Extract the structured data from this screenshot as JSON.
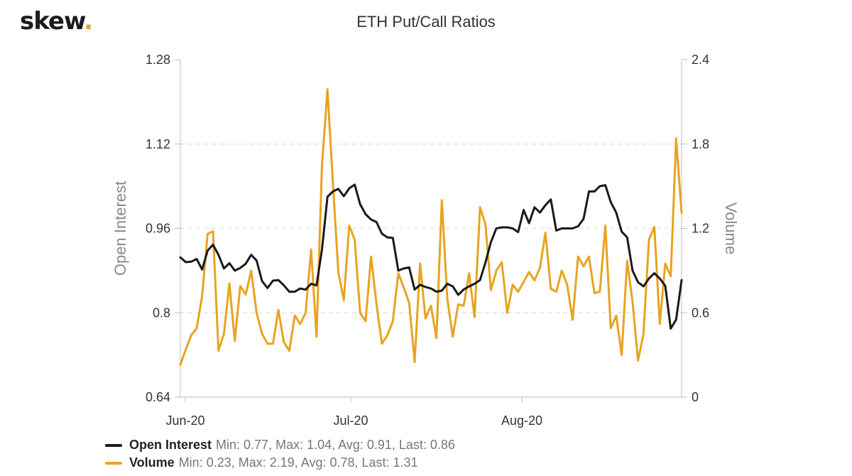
{
  "brand": {
    "name": "skew",
    "dot": "."
  },
  "chart_data": {
    "type": "line",
    "title": "ETH Put/Call Ratios",
    "x_ticks": [
      "Jun-20",
      "Jul-20",
      "Aug-20"
    ],
    "x_range": [
      "2020-05-31",
      "2020-09-02"
    ],
    "y_left": {
      "label": "Open Interest",
      "range": [
        0.64,
        1.28
      ],
      "ticks": [
        "1.28",
        "1.12",
        "0.96",
        "0.8",
        "0.64"
      ]
    },
    "y_right": {
      "label": "Volume",
      "range": [
        0,
        2.4
      ],
      "ticks": [
        "2.4",
        "1.8",
        "1.2",
        "0.6",
        "0"
      ]
    },
    "grid": true,
    "legend_position": "bottom-left",
    "series": [
      {
        "name": "Open Interest",
        "axis": "left",
        "color": "#1a1a1a",
        "values": [
          0.905,
          0.896,
          0.897,
          0.902,
          0.882,
          0.918,
          0.929,
          0.91,
          0.884,
          0.894,
          0.88,
          0.885,
          0.893,
          0.91,
          0.899,
          0.86,
          0.847,
          0.861,
          0.862,
          0.852,
          0.84,
          0.84,
          0.846,
          0.844,
          0.855,
          0.852,
          0.92,
          1.02,
          1.03,
          1.035,
          1.021,
          1.036,
          1.043,
          1.006,
          0.987,
          0.977,
          0.972,
          0.95,
          0.943,
          0.942,
          0.88,
          0.884,
          0.886,
          0.844,
          0.853,
          0.849,
          0.846,
          0.84,
          0.842,
          0.855,
          0.85,
          0.834,
          0.844,
          0.85,
          0.855,
          0.862,
          0.895,
          0.934,
          0.96,
          0.962,
          0.962,
          0.96,
          0.953,
          0.995,
          0.97,
          1.0,
          0.99,
          1.004,
          1.015,
          0.956,
          0.96,
          0.96,
          0.96,
          0.964,
          0.978,
          1.03,
          1.03,
          1.04,
          1.042,
          1.01,
          0.99,
          0.954,
          0.943,
          0.88,
          0.858,
          0.85,
          0.865,
          0.875,
          0.865,
          0.851,
          0.77,
          0.787,
          0.862
        ]
      },
      {
        "name": "Volume",
        "axis": "right",
        "color": "#e8a320",
        "values": [
          0.23,
          0.34,
          0.44,
          0.49,
          0.72,
          1.16,
          1.18,
          0.33,
          0.45,
          0.81,
          0.4,
          0.79,
          0.73,
          0.9,
          0.6,
          0.45,
          0.38,
          0.38,
          0.62,
          0.39,
          0.33,
          0.58,
          0.52,
          0.6,
          1.05,
          0.43,
          1.65,
          2.19,
          1.52,
          0.89,
          0.69,
          1.22,
          1.12,
          0.6,
          0.54,
          1.0,
          0.66,
          0.38,
          0.44,
          0.54,
          0.88,
          0.78,
          0.67,
          0.25,
          0.95,
          0.56,
          0.65,
          0.42,
          1.4,
          0.7,
          0.43,
          0.66,
          0.65,
          0.88,
          0.57,
          1.35,
          1.23,
          0.76,
          0.9,
          0.96,
          0.6,
          0.8,
          0.75,
          0.82,
          0.89,
          0.83,
          0.92,
          1.17,
          0.77,
          0.75,
          0.9,
          0.8,
          0.55,
          1.0,
          0.93,
          1.0,
          0.74,
          0.75,
          1.22,
          0.49,
          0.58,
          0.3,
          0.97,
          0.68,
          0.26,
          0.45,
          1.12,
          1.21,
          0.52,
          0.95,
          0.86,
          1.84,
          1.31
        ]
      }
    ]
  },
  "legend": [
    {
      "name": "Open Interest",
      "stats": "Min: 0.77, Max: 1.04, Avg: 0.91, Last: 0.86",
      "color": "#1a1a1a"
    },
    {
      "name": "Volume",
      "stats": "Min: 0.23, Max: 2.19, Avg: 0.78, Last: 1.31",
      "color": "#e8a320"
    }
  ]
}
